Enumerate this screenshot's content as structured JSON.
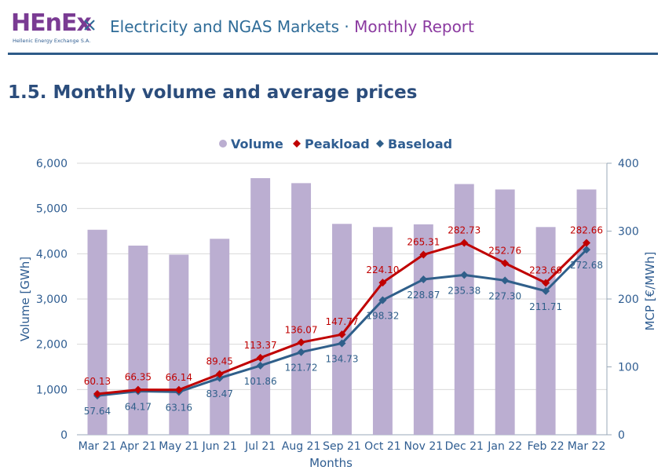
{
  "header": {
    "logo_text": "HEnEx",
    "logo_subtitle": "Hellenic Energy Exchange S.A.",
    "title_main": "Electricity and NGAS Markets",
    "title_sep": " · ",
    "title_sub": "Monthly Report"
  },
  "section": {
    "title": "1.5.  Monthly volume and average prices"
  },
  "colors": {
    "volume": "#bbaed1",
    "peakload": "#c00000",
    "baseload": "#2f5f8a",
    "axis_text": "#2f5d91",
    "grid": "#d9d9d9"
  },
  "chart_data": {
    "type": "bar",
    "categories": [
      "Mar 21",
      "Apr 21",
      "May 21",
      "Jun 21",
      "Jul 21",
      "Aug 21",
      "Sep 21",
      "Oct 21",
      "Nov 21",
      "Dec 21",
      "Jan 22",
      "Feb 22",
      "Mar 22"
    ],
    "series": [
      {
        "name": "Volume",
        "type": "bar",
        "axis": "left",
        "values": [
          4530,
          4180,
          3980,
          4330,
          5670,
          5560,
          4660,
          4590,
          4650,
          5540,
          5420,
          4590,
          5420
        ]
      },
      {
        "name": "Peakload",
        "type": "line",
        "axis": "right",
        "values": [
          60.13,
          66.35,
          66.14,
          89.45,
          113.37,
          136.07,
          147.77,
          224.1,
          265.31,
          282.73,
          252.76,
          223.69,
          282.66
        ]
      },
      {
        "name": "Baseload",
        "type": "line",
        "axis": "right",
        "values": [
          57.64,
          64.17,
          63.16,
          83.47,
          101.86,
          121.72,
          134.73,
          198.32,
          228.87,
          235.38,
          227.3,
          211.71,
          272.68
        ]
      }
    ],
    "peak_labels": [
      "60.13",
      "66.35",
      "66.14",
      "89.45",
      "113.37",
      "136.07",
      "147.77",
      "224.10",
      "265.31",
      "282.73",
      "252.76",
      "223.69",
      "282.66"
    ],
    "base_labels": [
      "57.64",
      "64.17",
      "63.16",
      "83.47",
      "101.86",
      "121.72",
      "134.73",
      "198.32",
      "228.87",
      "235.38",
      "227.30",
      "211.71",
      "272.68"
    ],
    "xlabel": "Months",
    "ylabel": "Volume [GWh]",
    "y2label": "MCP [€/MWh]",
    "ylim": [
      0,
      6000
    ],
    "y2lim": [
      0,
      400
    ],
    "yticks": [
      "0",
      "1,000",
      "2,000",
      "3,000",
      "4,000",
      "5,000",
      "6,000"
    ],
    "y2ticks": [
      "0",
      "100",
      "200",
      "300",
      "400"
    ],
    "grid": true,
    "legend_position": "top",
    "legend": [
      "Volume",
      "Peakload",
      "Baseload"
    ]
  }
}
